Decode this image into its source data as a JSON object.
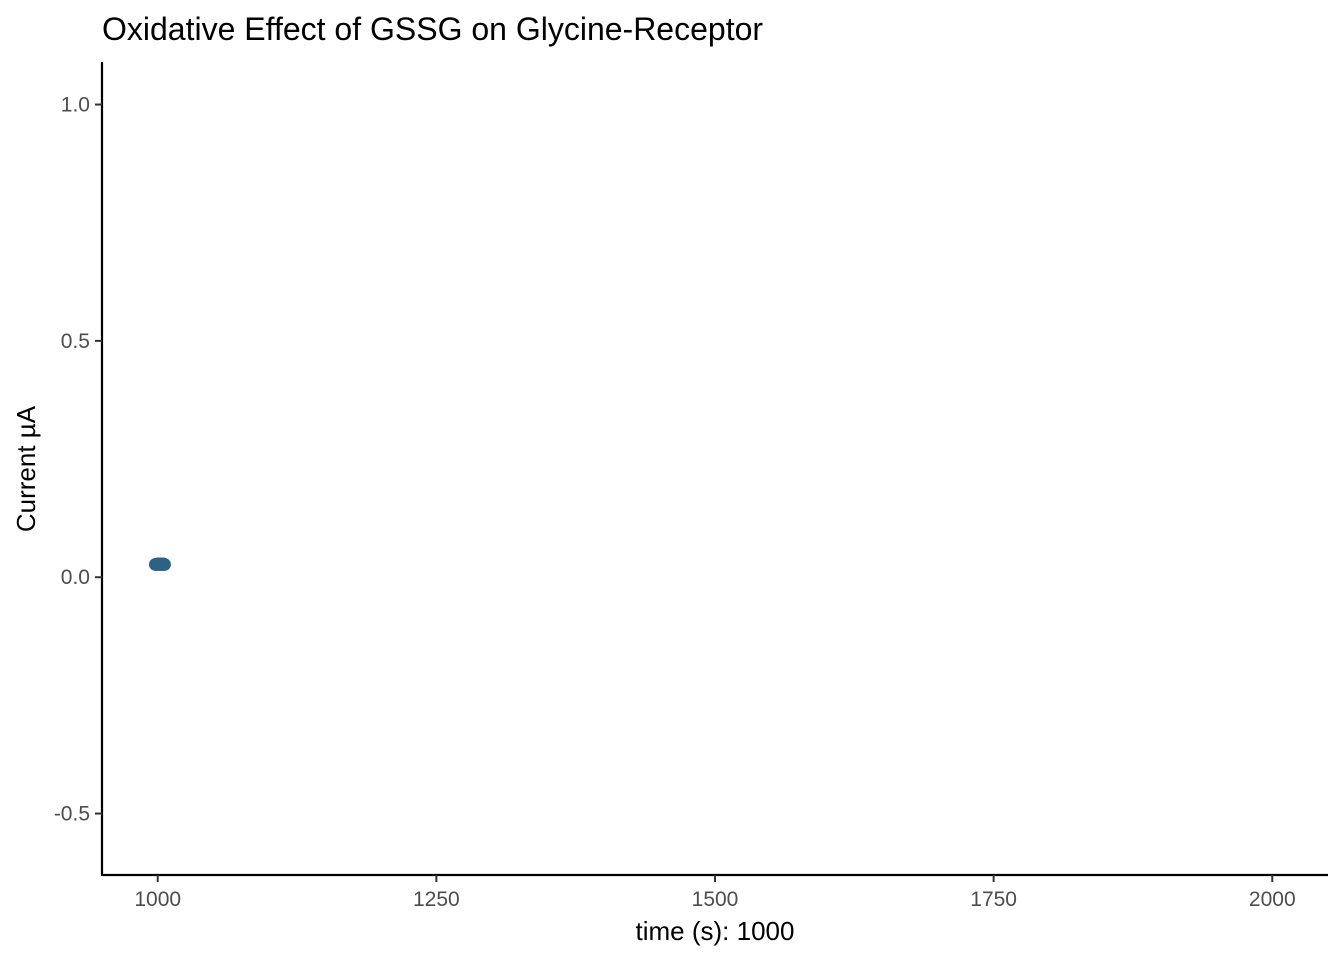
{
  "chart_data": {
    "type": "scatter",
    "title": "Oxidative Effect of GSSG on Glycine-Receptor",
    "xlabel": "time (s): 1000",
    "ylabel": "Current µA",
    "xlim": [
      950,
      2050
    ],
    "ylim": [
      -0.63,
      1.09
    ],
    "x_ticks": [
      1000,
      1250,
      1500,
      1750,
      2000
    ],
    "x_tick_labels": [
      "1000",
      "1250",
      "1500",
      "1750",
      "2000"
    ],
    "y_ticks": [
      -0.5,
      0.0,
      0.5,
      1.0
    ],
    "y_tick_labels": [
      "-0.5",
      "0.0",
      "0.5",
      "1.0"
    ],
    "grid": false,
    "legend": "none",
    "point_color": "#2a6384",
    "points": [
      {
        "x": 998,
        "y": 0.027
      },
      {
        "x": 999,
        "y": 0.027
      },
      {
        "x": 1000,
        "y": 0.028
      },
      {
        "x": 1001,
        "y": 0.027
      },
      {
        "x": 1002,
        "y": 0.028
      },
      {
        "x": 1003,
        "y": 0.027
      },
      {
        "x": 1004,
        "y": 0.027
      },
      {
        "x": 1005,
        "y": 0.028
      },
      {
        "x": 1006,
        "y": 0.027
      }
    ]
  }
}
